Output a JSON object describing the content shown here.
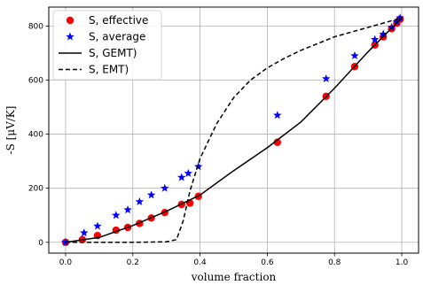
{
  "chart_data": {
    "type": "scatter",
    "xlabel": "volume fraction",
    "ylabel": "-S [μV/K]",
    "xlim": [
      -0.05,
      1.05
    ],
    "ylim": [
      -40,
      870
    ],
    "xticks": [
      0.0,
      0.2,
      0.4,
      0.6,
      0.8,
      1.0
    ],
    "xtick_labels": [
      "0.0",
      "0.2",
      "0.4",
      "0.6",
      "0.8",
      "1.0"
    ],
    "yticks": [
      0,
      200,
      400,
      600,
      800
    ],
    "ytick_labels": [
      "0",
      "200",
      "400",
      "600",
      "800"
    ],
    "grid": true,
    "legend_position": "top-left",
    "series": [
      {
        "name": "S, effective",
        "kind": "marker",
        "marker": "circle",
        "color": "#ff0000",
        "x": [
          0.0,
          0.05,
          0.095,
          0.15,
          0.185,
          0.22,
          0.255,
          0.295,
          0.345,
          0.37,
          0.395,
          0.63,
          0.775,
          0.86,
          0.92,
          0.945,
          0.97,
          0.985,
          0.995
        ],
        "y": [
          0,
          10,
          25,
          45,
          55,
          70,
          90,
          110,
          140,
          145,
          170,
          370,
          540,
          650,
          730,
          760,
          790,
          810,
          825
        ]
      },
      {
        "name": "S, average",
        "kind": "marker",
        "marker": "star",
        "color": "#0000ff",
        "x": [
          0.0,
          0.055,
          0.095,
          0.15,
          0.185,
          0.22,
          0.255,
          0.295,
          0.345,
          0.365,
          0.395,
          0.63,
          0.775,
          0.86,
          0.92,
          0.945,
          0.97,
          0.985,
          0.995
        ],
        "y": [
          0,
          35,
          60,
          100,
          120,
          150,
          175,
          200,
          240,
          255,
          280,
          470,
          605,
          690,
          750,
          770,
          795,
          815,
          830
        ]
      },
      {
        "name": "S, GEMT)",
        "kind": "line",
        "dash": "solid",
        "color": "#000000",
        "x": [
          0.0,
          0.1,
          0.2,
          0.3,
          0.4,
          0.5,
          0.6,
          0.7,
          0.8,
          0.9,
          1.0
        ],
        "y": [
          0,
          18,
          62,
          115,
          175,
          265,
          350,
          445,
          570,
          705,
          830
        ]
      },
      {
        "name": "S, EMT)",
        "kind": "line",
        "dash": "dashed",
        "color": "#000000",
        "x": [
          0.0,
          0.1,
          0.2,
          0.3,
          0.33,
          0.35,
          0.37,
          0.4,
          0.45,
          0.5,
          0.55,
          0.6,
          0.65,
          0.7,
          0.8,
          0.9,
          1.0
        ],
        "y": [
          0,
          0,
          0,
          2,
          10,
          80,
          190,
          310,
          440,
          535,
          600,
          645,
          680,
          710,
          760,
          795,
          830
        ]
      }
    ]
  }
}
